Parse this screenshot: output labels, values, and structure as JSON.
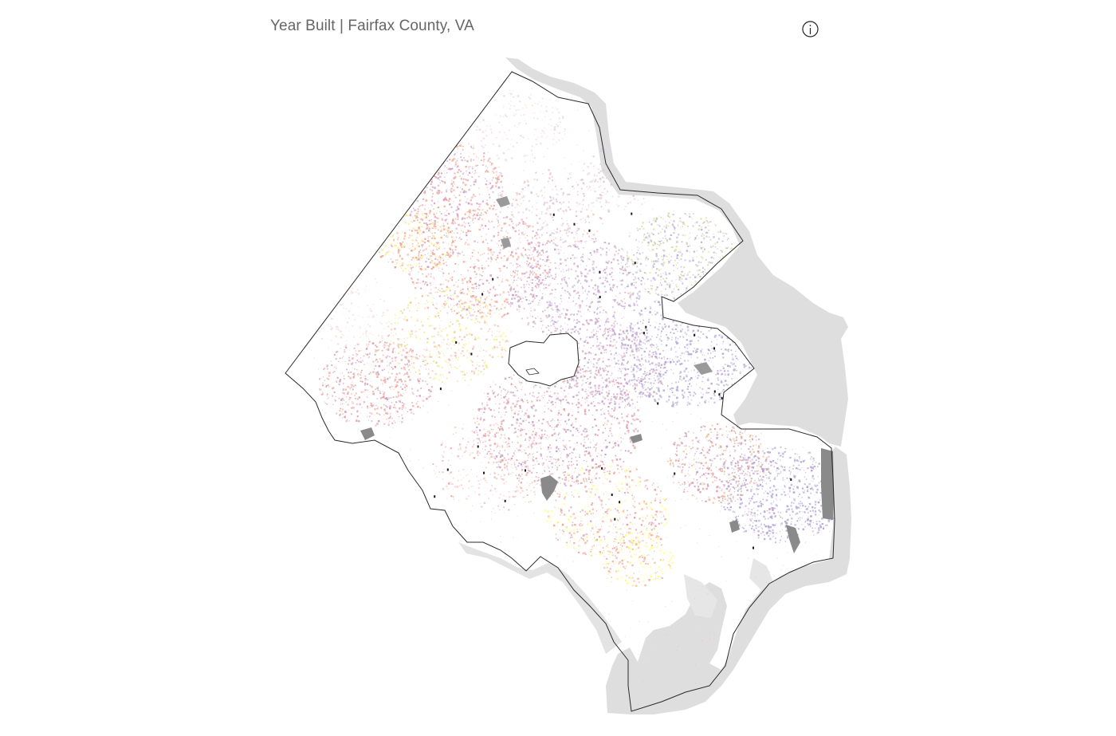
{
  "map": {
    "title": "Year Built | Fairfax County, VA",
    "icons": {
      "info": "info-icon"
    },
    "colors": {
      "background": "#ffffff",
      "water": "#dddddd",
      "lakes": "#8c8c8c",
      "county_outline": "#333333",
      "title_text": "#666666"
    },
    "legend_shown": false
  }
}
